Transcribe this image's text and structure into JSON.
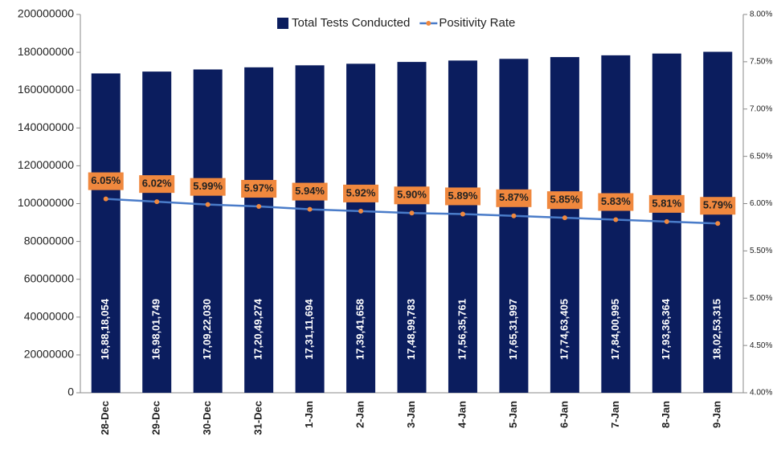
{
  "chart_data": {
    "type": "bar",
    "categories": [
      "28-Dec",
      "29-Dec",
      "30-Dec",
      "31-Dec",
      "1-Jan",
      "2-Jan",
      "3-Jan",
      "4-Jan",
      "5-Jan",
      "6-Jan",
      "7-Jan",
      "8-Jan",
      "9-Jan"
    ],
    "series": [
      {
        "name": "Total Tests Conducted",
        "type": "bar",
        "color": "#0b1d5e",
        "values": [
          168818054,
          169801749,
          170922030,
          172049274,
          173111694,
          173941658,
          174899783,
          175635761,
          176531997,
          177463405,
          178400995,
          179336364,
          180253315
        ],
        "value_labels": [
          "16,88,18,054",
          "16,98,01,749",
          "17,09,22,030",
          "17,20,49,274",
          "17,31,11,694",
          "17,39,41,658",
          "17,48,99,783",
          "17,56,35,761",
          "17,65,31,997",
          "17,74,63,405",
          "17,84,00,995",
          "17,93,36,364",
          "18,02,53,315"
        ]
      },
      {
        "name": "Positivity Rate",
        "type": "line",
        "axis": "y2",
        "color": "#4a7cc9",
        "marker_color": "#f0883e",
        "label_color": "#f0883e",
        "values": [
          6.05,
          6.02,
          5.99,
          5.97,
          5.94,
          5.92,
          5.9,
          5.89,
          5.87,
          5.85,
          5.83,
          5.81,
          5.79
        ],
        "value_labels": [
          "6.05%",
          "6.02%",
          "5.99%",
          "5.97%",
          "5.94%",
          "5.92%",
          "5.90%",
          "5.89%",
          "5.87%",
          "5.85%",
          "5.83%",
          "5.81%",
          "5.79%"
        ]
      }
    ],
    "ylim": [
      0,
      200000000
    ],
    "yticks": [
      0,
      20000000,
      40000000,
      60000000,
      80000000,
      100000000,
      120000000,
      140000000,
      160000000,
      180000000,
      200000000
    ],
    "y2lim": [
      4,
      8
    ],
    "y2ticks": [
      {
        "value": 4,
        "label": "4.00%"
      },
      {
        "value": 4.5,
        "label": "4.50%"
      },
      {
        "value": 5,
        "label": "5.00%"
      },
      {
        "value": 5.5,
        "label": "5.50%"
      },
      {
        "value": 6,
        "label": "6.00%"
      },
      {
        "value": 6.5,
        "label": "6.50%"
      },
      {
        "value": 7,
        "label": "7.00%"
      },
      {
        "value": 7.5,
        "label": "7.50%"
      },
      {
        "value": 8,
        "label": "8.00%"
      }
    ],
    "legend": "top"
  }
}
